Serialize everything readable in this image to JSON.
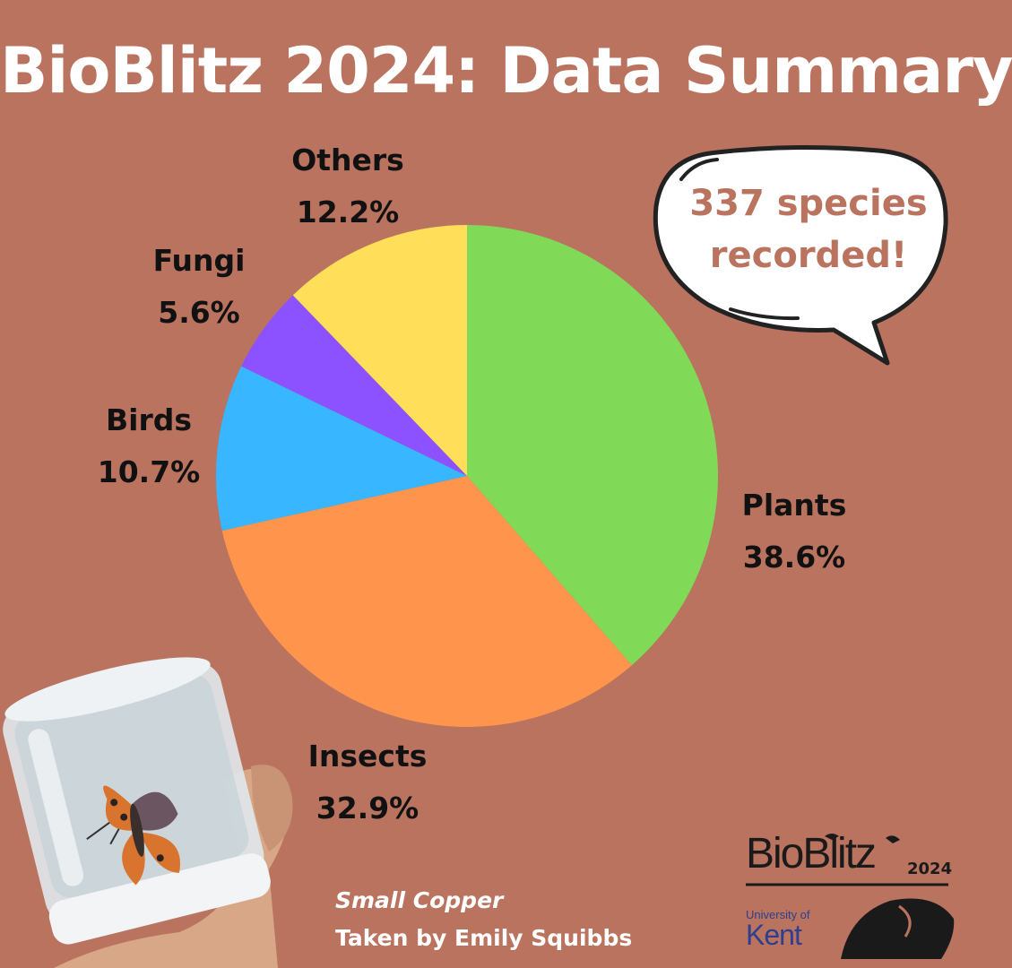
{
  "header": {
    "title": "BioBlitz 2024: Data Summary"
  },
  "callout": {
    "line1": "337 species",
    "line2": "recorded!"
  },
  "chart_data": {
    "type": "pie",
    "title": "BioBlitz 2024: Data Summary",
    "slices": [
      {
        "label": "Plants",
        "value": 38.6,
        "display": "38.6%",
        "color": "#80d957"
      },
      {
        "label": "Insects",
        "value": 32.9,
        "display": "32.9%",
        "color": "#ff944c"
      },
      {
        "label": "Birds",
        "value": 10.7,
        "display": "10.7%",
        "color": "#38b6ff"
      },
      {
        "label": "Fungi",
        "value": 5.6,
        "display": "5.6%",
        "color": "#8c52ff"
      },
      {
        "label": "Others",
        "value": 12.2,
        "display": "12.2%",
        "color": "#ffde59"
      }
    ]
  },
  "photo": {
    "species": "Small Copper",
    "credit": "Taken by Emily Squibbs"
  },
  "logo": {
    "wordmark": "BioBlitz",
    "year": "2024",
    "university_line1": "University of",
    "university_line2": "Kent"
  },
  "colors": {
    "background": "#b9735f",
    "title": "#ffffff",
    "callout_text": "#b9735f"
  }
}
